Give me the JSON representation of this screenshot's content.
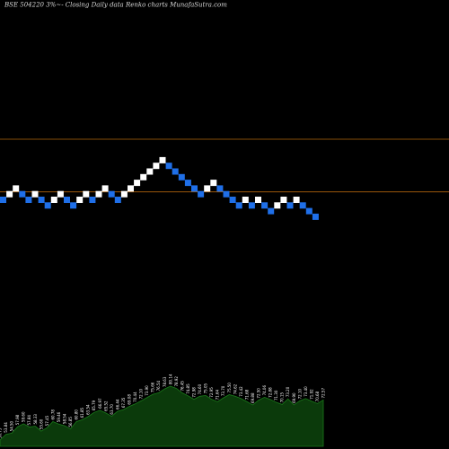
{
  "title": "BSE 504220  3%~-  Closing Daily data  Renko  charts MunafaSutra.com",
  "colors": {
    "background": "#000000",
    "up_brick": "#ffffff",
    "down_brick": "#1f6fe8",
    "level_line": "#b0640c",
    "volume_fill": "#0b3a0b",
    "volume_stroke": "#1a7a1a"
  },
  "chart_data": {
    "type": "renko",
    "brick_size_percent": 3,
    "bricks": [
      {
        "d": "down",
        "level": 0
      },
      {
        "d": "up",
        "level": 1
      },
      {
        "d": "up",
        "level": 2
      },
      {
        "d": "down",
        "level": 1
      },
      {
        "d": "down",
        "level": 0
      },
      {
        "d": "up",
        "level": 1
      },
      {
        "d": "down",
        "level": 0
      },
      {
        "d": "down",
        "level": -1
      },
      {
        "d": "up",
        "level": 0
      },
      {
        "d": "up",
        "level": 1
      },
      {
        "d": "down",
        "level": 0
      },
      {
        "d": "down",
        "level": -1
      },
      {
        "d": "up",
        "level": 0
      },
      {
        "d": "up",
        "level": 1
      },
      {
        "d": "down",
        "level": 0
      },
      {
        "d": "up",
        "level": 1
      },
      {
        "d": "up",
        "level": 2
      },
      {
        "d": "down",
        "level": 1
      },
      {
        "d": "down",
        "level": 0
      },
      {
        "d": "up",
        "level": 1
      },
      {
        "d": "up",
        "level": 2
      },
      {
        "d": "up",
        "level": 3
      },
      {
        "d": "up",
        "level": 4
      },
      {
        "d": "up",
        "level": 5
      },
      {
        "d": "up",
        "level": 6
      },
      {
        "d": "up",
        "level": 7
      },
      {
        "d": "down",
        "level": 6
      },
      {
        "d": "down",
        "level": 5
      },
      {
        "d": "down",
        "level": 4
      },
      {
        "d": "down",
        "level": 3
      },
      {
        "d": "down",
        "level": 2
      },
      {
        "d": "down",
        "level": 1
      },
      {
        "d": "up",
        "level": 2
      },
      {
        "d": "up",
        "level": 3
      },
      {
        "d": "down",
        "level": 2
      },
      {
        "d": "down",
        "level": 1
      },
      {
        "d": "down",
        "level": 0
      },
      {
        "d": "down",
        "level": -1
      },
      {
        "d": "up",
        "level": 0
      },
      {
        "d": "down",
        "level": -1
      },
      {
        "d": "up",
        "level": 0
      },
      {
        "d": "down",
        "level": -1
      },
      {
        "d": "down",
        "level": -2
      },
      {
        "d": "up",
        "level": -1
      },
      {
        "d": "up",
        "level": 0
      },
      {
        "d": "down",
        "level": -1
      },
      {
        "d": "up",
        "level": 0
      },
      {
        "d": "down",
        "level": -1
      },
      {
        "d": "down",
        "level": -2
      },
      {
        "d": "down",
        "level": -3
      }
    ],
    "level_lines": [
      10,
      1
    ],
    "volume_labels": [
      "50.75",
      "53.84",
      "54.50",
      "57.98",
      "59.60",
      "57.84",
      "58.33",
      "55.60",
      "57.45",
      "60.78",
      "59.46",
      "58.54",
      "56.85",
      "60.80",
      "61.85",
      "63.54",
      "65.79",
      "66.97",
      "65.52",
      "63.70",
      "66.44",
      "67.35",
      "69.08",
      "70.44",
      "72.10",
      "73.90",
      "75.66",
      "76.54",
      "78.63",
      "80.14",
      "78.92",
      "76.45",
      "74.85",
      "72.98",
      "74.60",
      "75.05",
      "72.95",
      "71.64",
      "73.70",
      "75.50",
      "74.62",
      "73.42",
      "71.68",
      "69.88",
      "72.50",
      "74.06",
      "72.88",
      "71.30",
      "70.15",
      "73.20",
      "69.90",
      "72.10",
      "73.40",
      "71.92",
      "70.68",
      "72.57"
    ]
  }
}
